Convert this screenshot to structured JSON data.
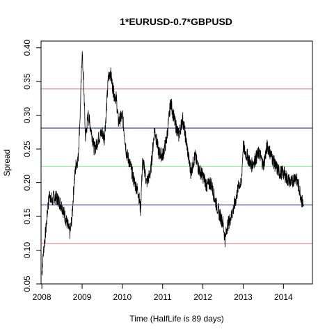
{
  "chart_data": {
    "type": "line",
    "title": "1*EURUSD-0.7*GBPUSD",
    "xlabel": "Time  (HalfLife is 89 days)",
    "ylabel": "Spread",
    "xlim": [
      2007.98,
      2014.72
    ],
    "ylim": [
      0.05,
      0.41
    ],
    "x_ticks": [
      2008,
      2009,
      2010,
      2011,
      2012,
      2013,
      2014
    ],
    "x_tick_labels": [
      "2008",
      "2009",
      "2010",
      "2011",
      "2012",
      "2013",
      "2014"
    ],
    "y_ticks": [
      0.05,
      0.1,
      0.15,
      0.2,
      0.25,
      0.3,
      0.35,
      0.4
    ],
    "y_tick_labels": [
      "0.05",
      "0.10",
      "0.15",
      "0.20",
      "0.25",
      "0.30",
      "0.35",
      "0.40"
    ],
    "grid": false,
    "legend": "none",
    "horizontal_lines": [
      {
        "y": 0.339,
        "color": "#f08080"
      },
      {
        "y": 0.281,
        "color": "#2f2f9a"
      },
      {
        "y": 0.224,
        "color": "#8ff08f"
      },
      {
        "y": 0.167,
        "color": "#2f2f9a"
      },
      {
        "y": 0.11,
        "color": "#f08080"
      }
    ],
    "series": [
      {
        "color": "#000000",
        "x": [
          2008.0,
          2008.05,
          2008.1,
          2008.15,
          2008.2,
          2008.25,
          2008.3,
          2008.4,
          2008.5,
          2008.6,
          2008.7,
          2008.75,
          2008.8,
          2008.85,
          2008.9,
          2008.95,
          2009.0,
          2009.05,
          2009.08,
          2009.1,
          2009.15,
          2009.2,
          2009.25,
          2009.3,
          2009.35,
          2009.4,
          2009.5,
          2009.55,
          2009.6,
          2009.65,
          2009.7,
          2009.75,
          2009.8,
          2009.85,
          2009.9,
          2010.0,
          2010.1,
          2010.2,
          2010.3,
          2010.4,
          2010.45,
          2010.5,
          2010.55,
          2010.6,
          2010.7,
          2010.8,
          2010.9,
          2011.0,
          2011.1,
          2011.2,
          2011.3,
          2011.4,
          2011.5,
          2011.6,
          2011.7,
          2011.8,
          2011.9,
          2012.0,
          2012.1,
          2012.2,
          2012.3,
          2012.4,
          2012.5,
          2012.55,
          2012.6,
          2012.7,
          2012.8,
          2012.9,
          2012.95,
          2013.0,
          2013.05,
          2013.1,
          2013.2,
          2013.3,
          2013.4,
          2013.5,
          2013.6,
          2013.7,
          2013.8,
          2013.9,
          2014.0,
          2014.1,
          2014.2,
          2014.3,
          2014.4,
          2014.45,
          2014.5
        ],
        "y": [
          0.065,
          0.105,
          0.13,
          0.165,
          0.185,
          0.17,
          0.18,
          0.175,
          0.165,
          0.145,
          0.125,
          0.15,
          0.2,
          0.228,
          0.235,
          0.3,
          0.395,
          0.33,
          0.268,
          0.275,
          0.3,
          0.285,
          0.27,
          0.25,
          0.255,
          0.265,
          0.275,
          0.265,
          0.305,
          0.355,
          0.365,
          0.345,
          0.33,
          0.325,
          0.29,
          0.3,
          0.245,
          0.225,
          0.2,
          0.185,
          0.16,
          0.23,
          0.22,
          0.2,
          0.215,
          0.28,
          0.245,
          0.24,
          0.265,
          0.32,
          0.29,
          0.27,
          0.295,
          0.255,
          0.215,
          0.24,
          0.22,
          0.21,
          0.195,
          0.2,
          0.175,
          0.155,
          0.14,
          0.115,
          0.135,
          0.15,
          0.17,
          0.2,
          0.195,
          0.255,
          0.245,
          0.24,
          0.225,
          0.235,
          0.245,
          0.225,
          0.255,
          0.24,
          0.225,
          0.215,
          0.215,
          0.205,
          0.2,
          0.21,
          0.19,
          0.175,
          0.165
        ]
      }
    ]
  }
}
